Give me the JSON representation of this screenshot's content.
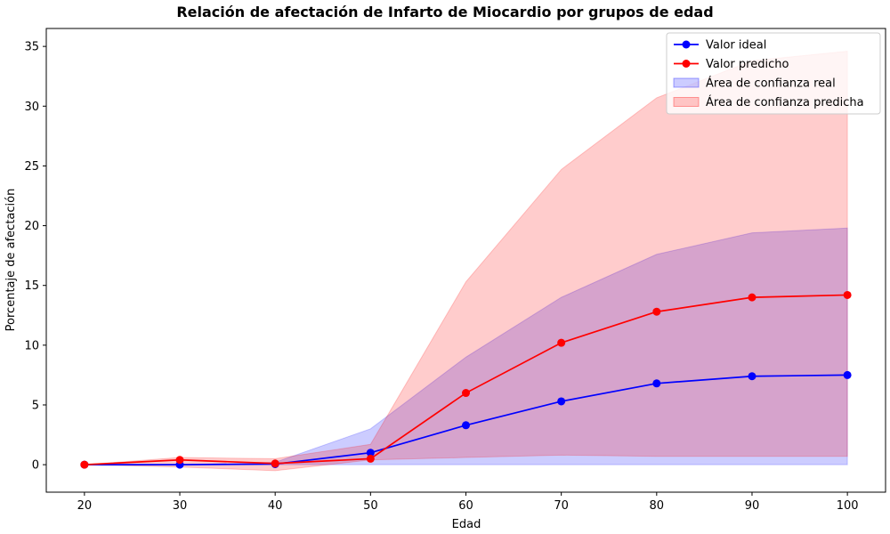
{
  "chart_data": {
    "type": "line",
    "title": "Relación de afectación de Infarto de Miocardio por grupos de edad",
    "xlabel": "Edad",
    "ylabel": "Porcentaje de afectación",
    "xlim": [
      16,
      104
    ],
    "ylim": [
      -2.3,
      36.5
    ],
    "x_ticks": [
      20,
      30,
      40,
      50,
      60,
      70,
      80,
      90,
      100
    ],
    "y_ticks": [
      0,
      5,
      10,
      15,
      20,
      25,
      30,
      35
    ],
    "x": [
      20,
      30,
      40,
      50,
      60,
      70,
      80,
      90,
      100
    ],
    "series": [
      {
        "name": "Valor ideal",
        "color": "#0000ff",
        "values": [
          0,
          0,
          0.05,
          1.0,
          3.3,
          5.3,
          6.8,
          7.4,
          7.5
        ]
      },
      {
        "name": "Valor predicho",
        "color": "#ff0000",
        "values": [
          0,
          0.4,
          0.1,
          0.5,
          6.0,
          10.2,
          12.8,
          14.0,
          14.2
        ]
      }
    ],
    "bands": [
      {
        "name": "Área de confianza real",
        "color": "#0000ff",
        "opacity": 0.2,
        "lower": [
          0,
          0,
          0,
          0,
          0,
          0,
          0,
          0,
          0
        ],
        "upper": [
          0,
          0,
          0.2,
          3.0,
          9.0,
          14.0,
          17.6,
          19.4,
          19.8
        ]
      },
      {
        "name": "Área de confianza predicha",
        "color": "#ff0000",
        "opacity": 0.2,
        "lower": [
          0,
          -0.2,
          -0.5,
          0.4,
          0.6,
          0.8,
          0.7,
          0.7,
          0.7
        ],
        "upper": [
          0,
          0.6,
          0.5,
          1.7,
          15.3,
          24.7,
          30.7,
          33.8,
          34.6
        ]
      }
    ],
    "legend_position": "top-right",
    "grid": false
  }
}
